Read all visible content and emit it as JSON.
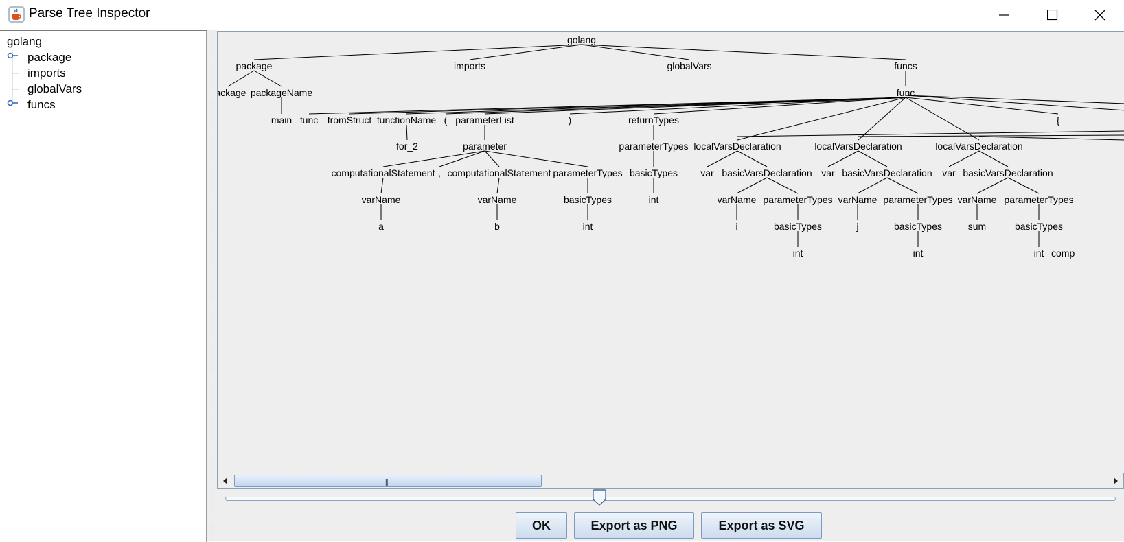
{
  "window": {
    "title": "Parse Tree Inspector",
    "icons": {
      "app": "java-coffee-cup-icon",
      "minimize": "minimize-icon",
      "maximize": "maximize-icon",
      "close": "close-icon"
    }
  },
  "sidebar": {
    "root": "golang",
    "items": [
      {
        "label": "package",
        "expandable": true
      },
      {
        "label": "imports",
        "expandable": false
      },
      {
        "label": "globalVars",
        "expandable": false
      },
      {
        "label": "funcs",
        "expandable": true
      }
    ]
  },
  "parse_tree": {
    "nodes": [
      "golang",
      "package",
      "imports",
      "globalVars",
      "funcs",
      "package",
      "packageName",
      "func",
      "main",
      "func",
      "fromStruct",
      "functionName",
      "(",
      "parameterList",
      ")",
      "returnTypes",
      "{",
      "for_2",
      "parameter",
      "parameterTypes",
      "localVarsDeclaration",
      "localVarsDeclaration",
      "localVarsDeclaration",
      "computationalStatement",
      ",",
      "computationalStatement",
      "parameterTypes",
      "basicTypes",
      "var",
      "basicVarsDeclaration",
      "var",
      "basicVarsDeclaration",
      "var",
      "basicVarsDeclaration",
      "varName",
      "varName",
      "basicTypes",
      "int",
      "varName",
      "parameterTypes",
      "varName",
      "parameterTypes",
      "varName",
      "parameterTypes",
      "a",
      "b",
      "int",
      "i",
      "basicTypes",
      "j",
      "basicTypes",
      "sum",
      "basicTypes",
      "int",
      "int",
      "int",
      "comp"
    ]
  },
  "controls": {
    "zoom_slider_value_percent": 42,
    "ok": "OK",
    "export_png": "Export as PNG",
    "export_svg": "Export as SVG"
  },
  "scroll": {
    "left_arrow": "left-arrow-icon",
    "right_arrow": "right-arrow-icon",
    "grip": "|||"
  }
}
